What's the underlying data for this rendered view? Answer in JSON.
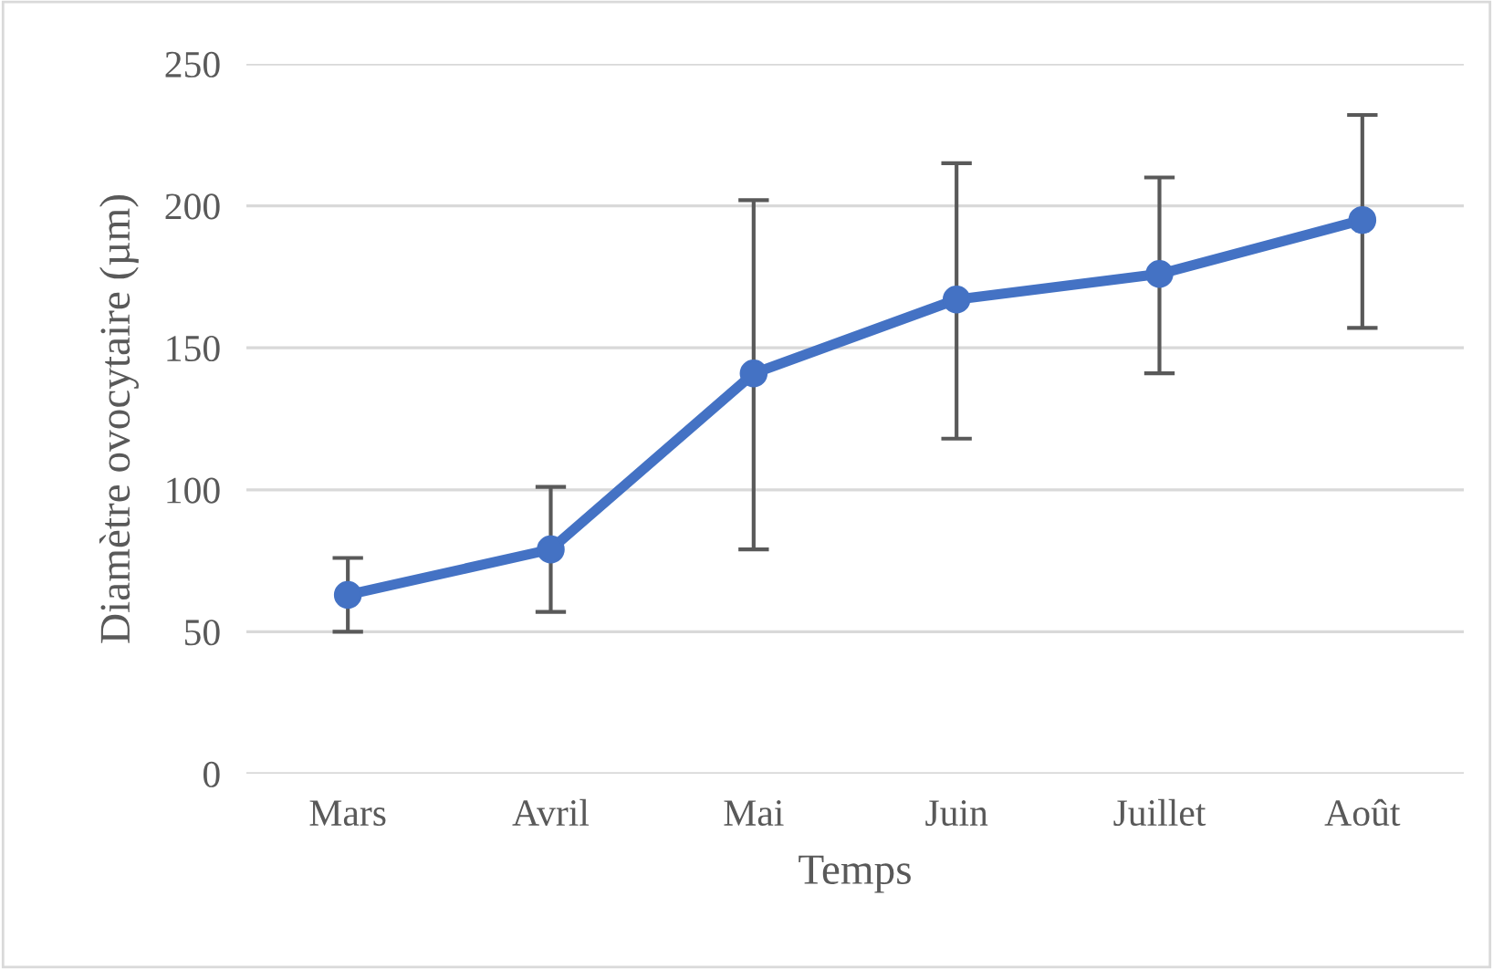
{
  "chart_data": {
    "type": "line",
    "xlabel": "Temps",
    "ylabel": "Diamètre ovocytaire (µm)",
    "categories": [
      "Mars",
      "Avril",
      "Mai",
      "Juin",
      "Juillet",
      "Août"
    ],
    "series": [
      {
        "color": "#4472c4",
        "values": [
          63,
          79,
          141,
          167,
          176,
          195
        ],
        "errors": [
          [
            50,
            76
          ],
          [
            57,
            101
          ],
          [
            79,
            202
          ],
          [
            118,
            215
          ],
          [
            141,
            210
          ],
          [
            157,
            232
          ]
        ]
      }
    ],
    "ylim": [
      0,
      250
    ],
    "yticks": [
      0,
      50,
      100,
      150,
      200,
      250
    ],
    "grid": "y",
    "marker": "circle",
    "line_style": "solid"
  }
}
